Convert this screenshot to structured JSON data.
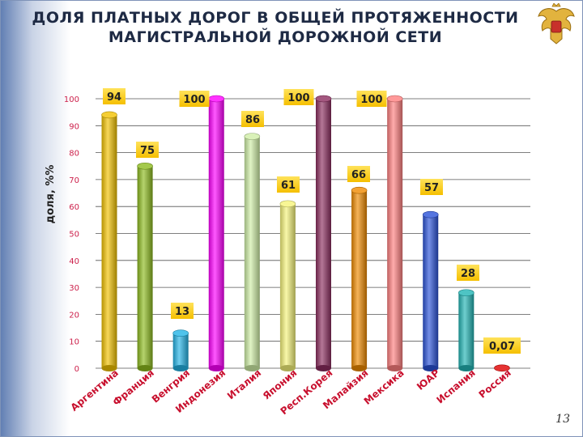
{
  "slide": {
    "title_line1": "ДОЛЯ ПЛАТНЫХ ДОРОГ В ОБЩЕЙ ПРОТЯЖЕННОСТИ",
    "title_line2": "МАГИСТРАЛЬНОЙ ДОРОЖНОЙ СЕТИ",
    "page_number": "13",
    "emblem_icon": "double-headed-eagle-icon"
  },
  "chart_data": {
    "type": "bar",
    "title": "",
    "xlabel": "",
    "ylabel": "доля, %%",
    "ylim": [
      0,
      100
    ],
    "yticks": [
      0,
      10,
      20,
      30,
      40,
      50,
      60,
      70,
      80,
      90,
      100
    ],
    "grid": true,
    "categories": [
      "Аргентина",
      "Франция",
      "Венгрия",
      "Индонезия",
      "Италия",
      "Япония",
      "Респ.Корея",
      "Малайзия",
      "Мексика",
      "ЮАР",
      "Испания",
      "Россия"
    ],
    "values": [
      94,
      75,
      13,
      100,
      86,
      61,
      100,
      66,
      100,
      57,
      28,
      0.07
    ],
    "data_labels": [
      "94",
      "75",
      "13",
      "100",
      "86",
      "61",
      "100",
      "66",
      "100",
      "57",
      "28",
      "0,07"
    ],
    "colors": [
      "#f2c200",
      "#8dbb1e",
      "#23b4e6",
      "#ff00ff",
      "#cfeea6",
      "#f6f47a",
      "#8c2d5f",
      "#f08a00",
      "#ff7f7f",
      "#2a52d8",
      "#22b5b5",
      "#e00000"
    ],
    "label_background": "#ffd21e"
  }
}
